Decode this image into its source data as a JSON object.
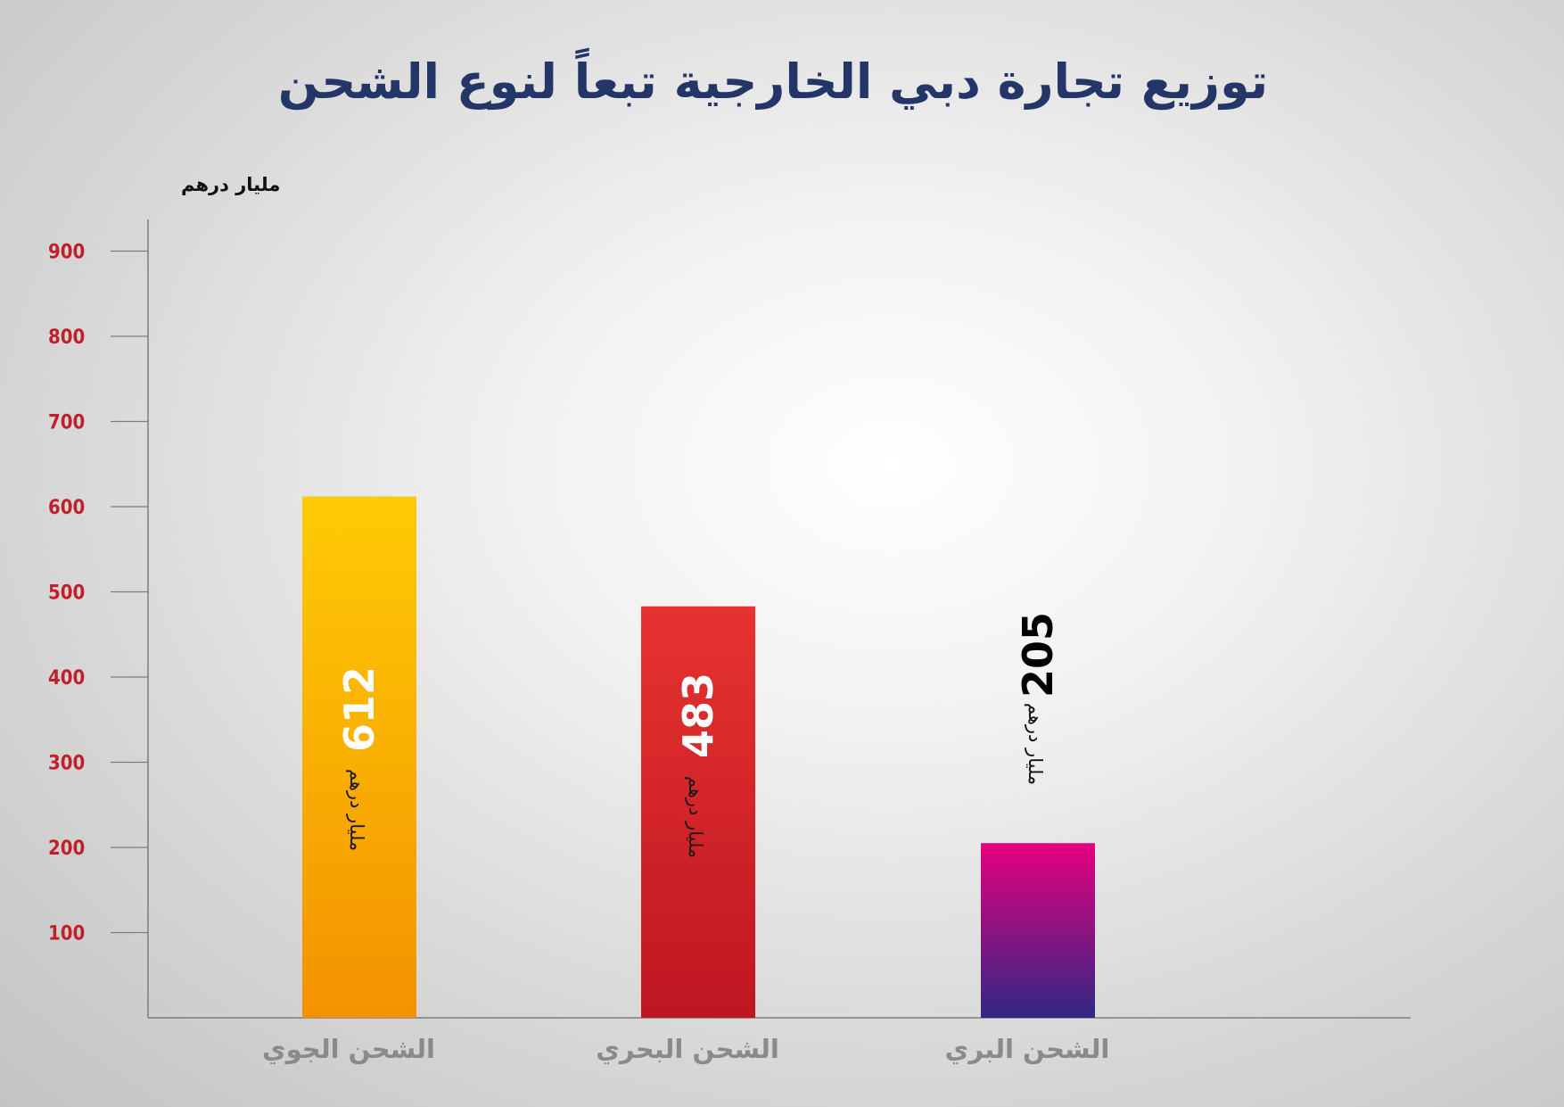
{
  "chart_data": {
    "type": "bar",
    "title": "توزيع تجارة دبي الخارجية تبعاً لنوع الشحن",
    "ylabel": "مليار درهم",
    "ylim": [
      0,
      900
    ],
    "yticks": [
      100,
      200,
      300,
      400,
      500,
      600,
      700,
      800,
      900
    ],
    "categories": [
      "الشحن الجوي",
      "الشحن البحري",
      "الشحن البري"
    ],
    "values": [
      612,
      483,
      205
    ],
    "value_unit": "مليار درهم",
    "grid": false,
    "legend": "none",
    "colors": [
      [
        "#ffcb05",
        "#f39200"
      ],
      [
        "#e63330",
        "#be1622"
      ],
      [
        "#e6007e",
        "#312783"
      ]
    ],
    "value_label_colors": [
      "#ffffff",
      "#ffffff",
      "#000000"
    ]
  }
}
